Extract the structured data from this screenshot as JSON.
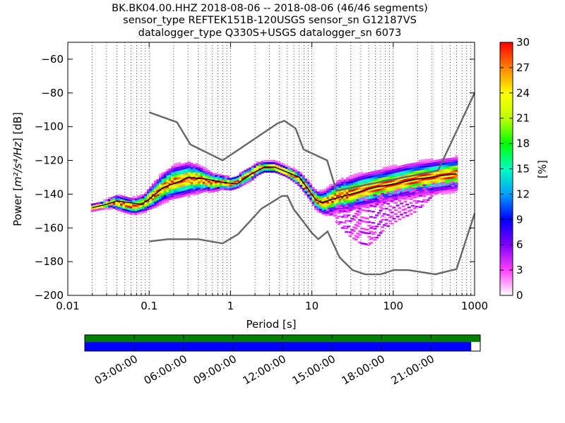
{
  "title_lines": [
    "BK.BK04.00.HHZ   2018-08-06 -- 2018-08-06  (46/46 segments)",
    "sensor_type REFTEK151B-120USGS sensor_sn G12187VS",
    "datalogger_type Q330S+USGS datalogger_sn 6073"
  ],
  "chart_data": [
    {
      "type": "heatmap",
      "xlabel": "Period [s]",
      "ylabel": "Power [m²/s⁴/Hz] [dB]",
      "ylabel_parts": {
        "prefix": "Power [",
        "unit_math": "m²/s⁴/Hz",
        "suffix": "] [dB]"
      },
      "xscale": "log",
      "xlim": [
        0.01,
        1000
      ],
      "ylim": [
        -200,
        -50
      ],
      "x_ticks": [
        {
          "value": 0.01,
          "label": "0.01"
        },
        {
          "value": 0.1,
          "label": "0.1"
        },
        {
          "value": 1,
          "label": "1"
        },
        {
          "value": 10,
          "label": "10"
        },
        {
          "value": 100,
          "label": "100"
        },
        {
          "value": 1000,
          "label": "1000"
        }
      ],
      "y_ticks": [
        {
          "value": -60,
          "label": "−60"
        },
        {
          "value": -80,
          "label": "−80"
        },
        {
          "value": -100,
          "label": "−100"
        },
        {
          "value": -120,
          "label": "−120"
        },
        {
          "value": -140,
          "label": "−140"
        },
        {
          "value": -160,
          "label": "−160"
        },
        {
          "value": -180,
          "label": "−180"
        },
        {
          "value": -200,
          "label": "−200"
        }
      ],
      "grid": "dotted vertical at decade subdivisions",
      "colorbar": {
        "label": "[%]",
        "range": [
          0,
          30
        ],
        "ticks": [
          {
            "value": 0,
            "label": "0"
          },
          {
            "value": 3,
            "label": "3"
          },
          {
            "value": 6,
            "label": "6"
          },
          {
            "value": 9,
            "label": "9"
          },
          {
            "value": 12,
            "label": "12"
          },
          {
            "value": 15,
            "label": "15"
          },
          {
            "value": 18,
            "label": "18"
          },
          {
            "value": 21,
            "label": "21"
          },
          {
            "value": 24,
            "label": "24"
          },
          {
            "value": 27,
            "label": "27"
          },
          {
            "value": 30,
            "label": "30"
          }
        ],
        "colors": [
          "#ffffff",
          "#ff40ff",
          "#8000ff",
          "#0000ff",
          "#00a0ff",
          "#00ffc0",
          "#00ff00",
          "#c0ff00",
          "#ffff00",
          "#ff8000",
          "#ff0000"
        ]
      },
      "noise_models": [
        {
          "id": "nhnm",
          "points": [
            [
              0.1,
              -91.5
            ],
            [
              0.22,
              -97.4
            ],
            [
              0.32,
              -110.5
            ],
            [
              0.8,
              -120
            ],
            [
              3.8,
              -98
            ],
            [
              4.6,
              -96.5
            ],
            [
              6.3,
              -101
            ],
            [
              7.9,
              -113.5
            ],
            [
              15.4,
              -120
            ],
            [
              20,
              -138
            ],
            [
              354.8,
              -126
            ],
            [
              10000,
              -80
            ]
          ]
        },
        {
          "id": "nlnm",
          "points": [
            [
              0.1,
              -168
            ],
            [
              0.17,
              -166.7
            ],
            [
              0.4,
              -166.7
            ],
            [
              0.8,
              -169.2
            ],
            [
              1.24,
              -163.7
            ],
            [
              2.4,
              -148.6
            ],
            [
              4.3,
              -141.1
            ],
            [
              5,
              -141.1
            ],
            [
              6,
              -149
            ],
            [
              10,
              -163
            ],
            [
              12,
              -166.7
            ],
            [
              15.6,
              -162.1
            ],
            [
              21.9,
              -177.5
            ],
            [
              31.6,
              -185
            ],
            [
              45,
              -187.5
            ],
            [
              70,
              -187.5
            ],
            [
              101,
              -185
            ],
            [
              154,
              -185
            ],
            [
              328,
              -187.5
            ],
            [
              600,
              -184.4
            ],
            [
              10000,
              -151.5
            ]
          ]
        }
      ],
      "mode_curve": [
        [
          0.02,
          -148
        ],
        [
          0.03,
          -146
        ],
        [
          0.04,
          -144
        ],
        [
          0.08,
          -146
        ],
        [
          0.1,
          -143
        ],
        [
          0.15,
          -136
        ],
        [
          0.25,
          -132
        ],
        [
          0.3,
          -130
        ],
        [
          0.5,
          -131
        ],
        [
          0.8,
          -133
        ],
        [
          1.2,
          -134
        ],
        [
          1.8,
          -128
        ],
        [
          2.6,
          -124
        ],
        [
          3.5,
          -124
        ],
        [
          5,
          -127
        ],
        [
          7,
          -130
        ],
        [
          9,
          -137
        ],
        [
          11,
          -143
        ],
        [
          13,
          -145
        ],
        [
          18,
          -143
        ],
        [
          30,
          -140
        ],
        [
          60,
          -136
        ],
        [
          100,
          -134
        ],
        [
          200,
          -131
        ],
        [
          400,
          -129
        ],
        [
          600,
          -128
        ]
      ],
      "psd_band": [
        [
          0.02,
          -148,
          1.0
        ],
        [
          0.025,
          -147,
          1.0
        ],
        [
          0.03,
          -146,
          1.2
        ],
        [
          0.035,
          -145,
          1.5
        ],
        [
          0.04,
          -145,
          2.0
        ],
        [
          0.05,
          -146,
          2.2
        ],
        [
          0.06,
          -147,
          2.2
        ],
        [
          0.07,
          -147,
          2.3
        ],
        [
          0.08,
          -146,
          2.3
        ],
        [
          0.09,
          -145,
          2.5
        ],
        [
          0.1,
          -143,
          3.0
        ],
        [
          0.12,
          -140,
          3.5
        ],
        [
          0.15,
          -136,
          4.0
        ],
        [
          0.2,
          -133,
          4.5
        ],
        [
          0.25,
          -132,
          4.5
        ],
        [
          0.3,
          -131,
          4.5
        ],
        [
          0.4,
          -131,
          3.8
        ],
        [
          0.5,
          -132,
          3.0
        ],
        [
          0.6,
          -133,
          2.5
        ],
        [
          0.8,
          -133,
          2.0
        ],
        [
          1.0,
          -134,
          1.8
        ],
        [
          1.2,
          -133,
          1.8
        ],
        [
          1.5,
          -130,
          2.0
        ],
        [
          1.8,
          -128,
          2.0
        ],
        [
          2.2,
          -125,
          1.8
        ],
        [
          2.6,
          -124,
          1.6
        ],
        [
          3.0,
          -124,
          1.6
        ],
        [
          3.5,
          -124,
          1.6
        ],
        [
          4.0,
          -125,
          1.6
        ],
        [
          5.0,
          -127,
          1.6
        ],
        [
          6.0,
          -129,
          1.8
        ],
        [
          7.0,
          -131,
          2.0
        ],
        [
          8.0,
          -134,
          2.2
        ],
        [
          9.0,
          -137,
          2.3
        ],
        [
          10.0,
          -140,
          2.3
        ],
        [
          11.0,
          -143,
          2.5
        ],
        [
          13.0,
          -145,
          3.0
        ],
        [
          15.0,
          -145,
          3.5
        ],
        [
          18.0,
          -143,
          4.0
        ],
        [
          22.0,
          -141,
          4.2
        ],
        [
          30.0,
          -140,
          4.5
        ],
        [
          40.0,
          -138,
          4.5
        ],
        [
          60.0,
          -136,
          4.5
        ],
        [
          100.0,
          -134,
          4.5
        ],
        [
          150.0,
          -132,
          4.5
        ],
        [
          200.0,
          -131,
          4.5
        ],
        [
          300.0,
          -130,
          4.5
        ],
        [
          400.0,
          -129,
          4.5
        ],
        [
          600.0,
          -128,
          4.5
        ]
      ],
      "low_tail": [
        [
          14,
          -148
        ],
        [
          16,
          -150
        ],
        [
          18,
          -153
        ],
        [
          20,
          -156
        ],
        [
          25,
          -161
        ],
        [
          30,
          -165
        ],
        [
          35,
          -167
        ],
        [
          40,
          -169
        ],
        [
          50,
          -170
        ],
        [
          60,
          -167
        ],
        [
          70,
          -163
        ],
        [
          80,
          -160
        ],
        [
          100,
          -157
        ],
        [
          130,
          -154
        ],
        [
          180,
          -151
        ],
        [
          250,
          -145
        ],
        [
          300,
          -141
        ],
        [
          400,
          -138
        ],
        [
          600,
          -134
        ]
      ]
    },
    {
      "type": "bar",
      "id": "data-coverage",
      "x_ticks": [
        {
          "value": 3,
          "label": "03:00:00"
        },
        {
          "value": 6,
          "label": "06:00:00"
        },
        {
          "value": 9,
          "label": "09:00:00"
        },
        {
          "value": 12,
          "label": "12:00:00"
        },
        {
          "value": 15,
          "label": "15:00:00"
        },
        {
          "value": 18,
          "label": "18:00:00"
        },
        {
          "value": 21,
          "label": "21:00:00"
        }
      ],
      "xlim": [
        0,
        24
      ],
      "processed_hours": [
        0,
        24
      ],
      "data_hours": [
        0,
        23.45
      ],
      "processed_color": "#008000",
      "data_color": "#0000ff"
    }
  ]
}
